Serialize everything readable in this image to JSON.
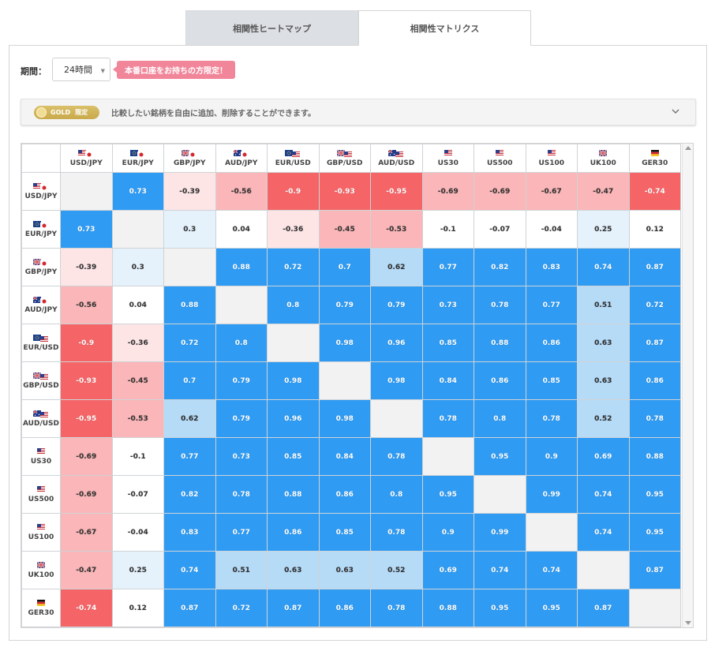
{
  "tabs": [
    {
      "label": "相関性ヒートマップ",
      "active": false
    },
    {
      "label": "相関性マトリクス",
      "active": true
    }
  ],
  "period": {
    "label": "期間：",
    "value": "24時間"
  },
  "badge": "本番口座をお持ちの方限定！",
  "gold": {
    "pill_text": "GOLD",
    "pill_sub": "限定",
    "message": "比較したい銘柄を自由に追加、削除することができます。"
  },
  "colors": {
    "strong_positive": "#2f9bf3",
    "mid_positive": "#b6dbf7",
    "weak_positive": "#e5f2fc",
    "neutral": "#ffffff",
    "weak_negative": "#fde5e6",
    "mid_negative": "#fab6b8",
    "strong_negative": "#f56567",
    "accent_pink": "#f1869a",
    "gold": "#d2b45a"
  },
  "symbols": [
    {
      "label": "USD/JPY",
      "flag": "us-jp"
    },
    {
      "label": "EUR/JPY",
      "flag": "eu-jp"
    },
    {
      "label": "GBP/JPY",
      "flag": "gb-jp"
    },
    {
      "label": "AUD/JPY",
      "flag": "au-jp"
    },
    {
      "label": "EUR/USD",
      "flag": "eu-us"
    },
    {
      "label": "GBP/USD",
      "flag": "gb-us"
    },
    {
      "label": "AUD/USD",
      "flag": "au-us"
    },
    {
      "label": "US30",
      "flag": "us"
    },
    {
      "label": "US500",
      "flag": "us"
    },
    {
      "label": "US100",
      "flag": "us"
    },
    {
      "label": "UK100",
      "flag": "gb"
    },
    {
      "label": "GER30",
      "flag": "de"
    }
  ],
  "matrix": [
    [
      null,
      "0.73",
      "-0.39",
      "-0.56",
      "-0.9",
      "-0.93",
      "-0.95",
      "-0.69",
      "-0.69",
      "-0.67",
      "-0.47",
      "-0.74"
    ],
    [
      "0.73",
      null,
      "0.3",
      "0.04",
      "-0.36",
      "-0.45",
      "-0.53",
      "-0.1",
      "-0.07",
      "-0.04",
      "0.25",
      "0.12"
    ],
    [
      "-0.39",
      "0.3",
      null,
      "0.88",
      "0.72",
      "0.7",
      "0.62",
      "0.77",
      "0.82",
      "0.83",
      "0.74",
      "0.87"
    ],
    [
      "-0.56",
      "0.04",
      "0.88",
      null,
      "0.8",
      "0.79",
      "0.79",
      "0.73",
      "0.78",
      "0.77",
      "0.51",
      "0.72"
    ],
    [
      "-0.9",
      "-0.36",
      "0.72",
      "0.8",
      null,
      "0.98",
      "0.96",
      "0.85",
      "0.88",
      "0.86",
      "0.63",
      "0.87"
    ],
    [
      "-0.93",
      "-0.45",
      "0.7",
      "0.79",
      "0.98",
      null,
      "0.98",
      "0.84",
      "0.86",
      "0.85",
      "0.63",
      "0.86"
    ],
    [
      "-0.95",
      "-0.53",
      "0.62",
      "0.79",
      "0.96",
      "0.98",
      null,
      "0.78",
      "0.8",
      "0.78",
      "0.52",
      "0.78"
    ],
    [
      "-0.69",
      "-0.1",
      "0.77",
      "0.73",
      "0.85",
      "0.84",
      "0.78",
      null,
      "0.95",
      "0.9",
      "0.69",
      "0.88"
    ],
    [
      "-0.69",
      "-0.07",
      "0.82",
      "0.78",
      "0.88",
      "0.86",
      "0.8",
      "0.95",
      null,
      "0.99",
      "0.74",
      "0.95"
    ],
    [
      "-0.67",
      "-0.04",
      "0.83",
      "0.77",
      "0.86",
      "0.85",
      "0.78",
      "0.9",
      "0.99",
      null,
      "0.74",
      "0.95"
    ],
    [
      "-0.47",
      "0.25",
      "0.74",
      "0.51",
      "0.63",
      "0.63",
      "0.52",
      "0.69",
      "0.74",
      "0.74",
      null,
      "0.87"
    ],
    [
      "-0.74",
      "0.12",
      "0.87",
      "0.72",
      "0.87",
      "0.86",
      "0.78",
      "0.88",
      "0.95",
      "0.95",
      "0.87",
      null
    ]
  ]
}
